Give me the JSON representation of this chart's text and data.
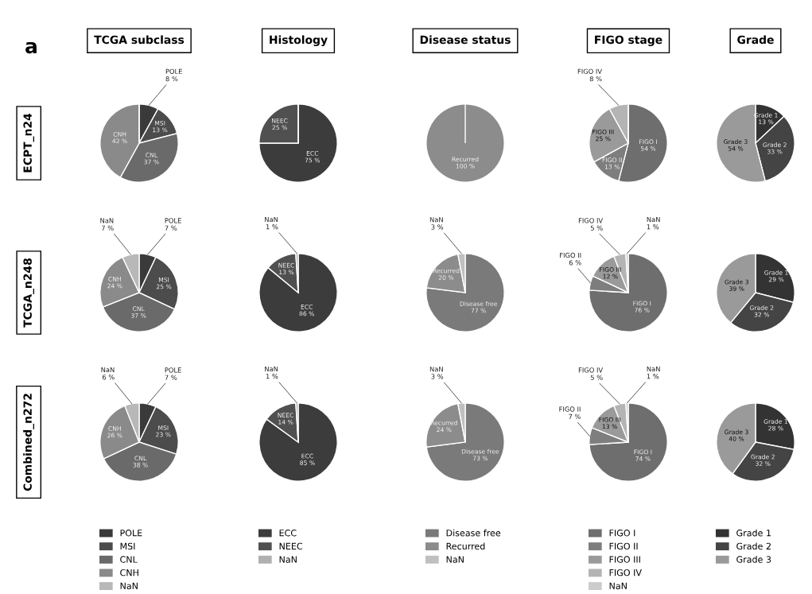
{
  "chart_data": [
    {
      "type": "pie",
      "legend": "bottom",
      "title": "TCGA subclass",
      "ylabel": "ECPT_n24",
      "annotations": [
        "a"
      ],
      "categories": [
        "POLE",
        "MSI",
        "CNL",
        "CNH",
        "NaN"
      ],
      "values": [
        8,
        13,
        37,
        42,
        0
      ],
      "value_labels": [
        "8 %",
        "13 %",
        "37 %",
        "42 %",
        null
      ],
      "colors": [
        "#3a3a3a",
        "#4c4c4c",
        "#6a6a6a",
        "#8a8a8a",
        "#b8b8b8"
      ]
    },
    {
      "type": "pie",
      "legend": "bottom",
      "title": "Histology",
      "categories": [
        "ECC",
        "NEEC",
        "NaN"
      ],
      "values": [
        75,
        25,
        0
      ],
      "value_labels": [
        "75 %",
        "25 %",
        null
      ],
      "colors": [
        "#3c3c3c",
        "#505050",
        "#b0b0b0"
      ]
    },
    {
      "type": "pie",
      "legend": "bottom",
      "title": "Disease status",
      "categories": [
        "Disease free",
        "Recurred",
        "NaN"
      ],
      "values": [
        0,
        100,
        0
      ],
      "value_labels": [
        null,
        "100 %",
        null
      ],
      "colors": [
        "#7a7a7a",
        "#8c8c8c",
        "#c0c0c0"
      ]
    },
    {
      "type": "pie",
      "legend": "bottom",
      "title": "FIGO stage",
      "categories": [
        "FIGO I",
        "FIGO II",
        "FIGO III",
        "FIGO IV",
        "NaN"
      ],
      "values": [
        54,
        13,
        25,
        8,
        0
      ],
      "value_labels": [
        "54 %",
        "13 %",
        "25 %",
        "8 %",
        null
      ],
      "colors": [
        "#6e6e6e",
        "#7e7e7e",
        "#9a9a9a",
        "#b4b4b4",
        "#cccccc"
      ]
    },
    {
      "type": "pie",
      "legend": "bottom",
      "title": "Grade",
      "categories": [
        "Grade 1",
        "Grade 2",
        "Grade 3"
      ],
      "values": [
        13,
        33,
        54
      ],
      "value_labels": [
        "13 %",
        "33 %",
        "54 %"
      ],
      "colors": [
        "#333333",
        "#444444",
        "#9a9a9a"
      ]
    },
    {
      "type": "pie",
      "ylabel": "TCGA_n248",
      "categories": [
        "POLE",
        "MSI",
        "CNL",
        "CNH",
        "NaN"
      ],
      "values": [
        7,
        25,
        37,
        24,
        7
      ],
      "value_labels": [
        "7 %",
        "25 %",
        "37 %",
        "24 %",
        "7 %"
      ],
      "colors": [
        "#3a3a3a",
        "#4c4c4c",
        "#6a6a6a",
        "#8a8a8a",
        "#b8b8b8"
      ]
    },
    {
      "type": "pie",
      "categories": [
        "ECC",
        "NEEC",
        "NaN"
      ],
      "values": [
        86,
        13,
        1
      ],
      "value_labels": [
        "86 %",
        "13 %",
        "1 %"
      ],
      "colors": [
        "#3c3c3c",
        "#505050",
        "#b0b0b0"
      ]
    },
    {
      "type": "pie",
      "categories": [
        "Disease free",
        "Recurred",
        "NaN"
      ],
      "values": [
        77,
        20,
        3
      ],
      "value_labels": [
        "77 %",
        "20 %",
        "3 %"
      ],
      "colors": [
        "#7a7a7a",
        "#8c8c8c",
        "#c0c0c0"
      ]
    },
    {
      "type": "pie",
      "categories": [
        "FIGO I",
        "FIGO II",
        "FIGO III",
        "FIGO IV",
        "NaN"
      ],
      "values": [
        76,
        6,
        12,
        5,
        1
      ],
      "value_labels": [
        "76 %",
        "6 %",
        "12 %",
        "5 %",
        "1 %"
      ],
      "colors": [
        "#6e6e6e",
        "#7e7e7e",
        "#9a9a9a",
        "#b4b4b4",
        "#cccccc"
      ]
    },
    {
      "type": "pie",
      "categories": [
        "Grade 1",
        "Grade 2",
        "Grade 3"
      ],
      "values": [
        29,
        32,
        39
      ],
      "value_labels": [
        "29 %",
        "32 %",
        "39 %"
      ],
      "colors": [
        "#333333",
        "#444444",
        "#9a9a9a"
      ]
    },
    {
      "type": "pie",
      "ylabel": "Combined_n272",
      "categories": [
        "POLE",
        "MSI",
        "CNL",
        "CNH",
        "NaN"
      ],
      "values": [
        7,
        23,
        38,
        26,
        6
      ],
      "value_labels": [
        "7 %",
        "23 %",
        "38 %",
        "26 %",
        "6 %"
      ],
      "colors": [
        "#3a3a3a",
        "#4c4c4c",
        "#6a6a6a",
        "#8a8a8a",
        "#b8b8b8"
      ]
    },
    {
      "type": "pie",
      "categories": [
        "ECC",
        "NEEC",
        "NaN"
      ],
      "values": [
        85,
        14,
        1
      ],
      "value_labels": [
        "85 %",
        "14 %",
        "1 %"
      ],
      "colors": [
        "#3c3c3c",
        "#505050",
        "#b0b0b0"
      ]
    },
    {
      "type": "pie",
      "categories": [
        "Disease free",
        "Recurred",
        "NaN"
      ],
      "values": [
        73,
        24,
        3
      ],
      "value_labels": [
        "73 %",
        "24 %",
        "3 %"
      ],
      "colors": [
        "#7a7a7a",
        "#8c8c8c",
        "#c0c0c0"
      ]
    },
    {
      "type": "pie",
      "categories": [
        "FIGO I",
        "FIGO II",
        "FIGO III",
        "FIGO IV",
        "NaN"
      ],
      "values": [
        74,
        7,
        13,
        5,
        1
      ],
      "value_labels": [
        "74 %",
        "7 %",
        "13 %",
        "5 %",
        "1 %"
      ],
      "colors": [
        "#6e6e6e",
        "#7e7e7e",
        "#9a9a9a",
        "#b4b4b4",
        "#cccccc"
      ]
    },
    {
      "type": "pie",
      "categories": [
        "Grade 1",
        "Grade 2",
        "Grade 3"
      ],
      "values": [
        28,
        32,
        40
      ],
      "value_labels": [
        "28 %",
        "32 %",
        "40 %"
      ],
      "colors": [
        "#333333",
        "#444444",
        "#9a9a9a"
      ]
    }
  ]
}
